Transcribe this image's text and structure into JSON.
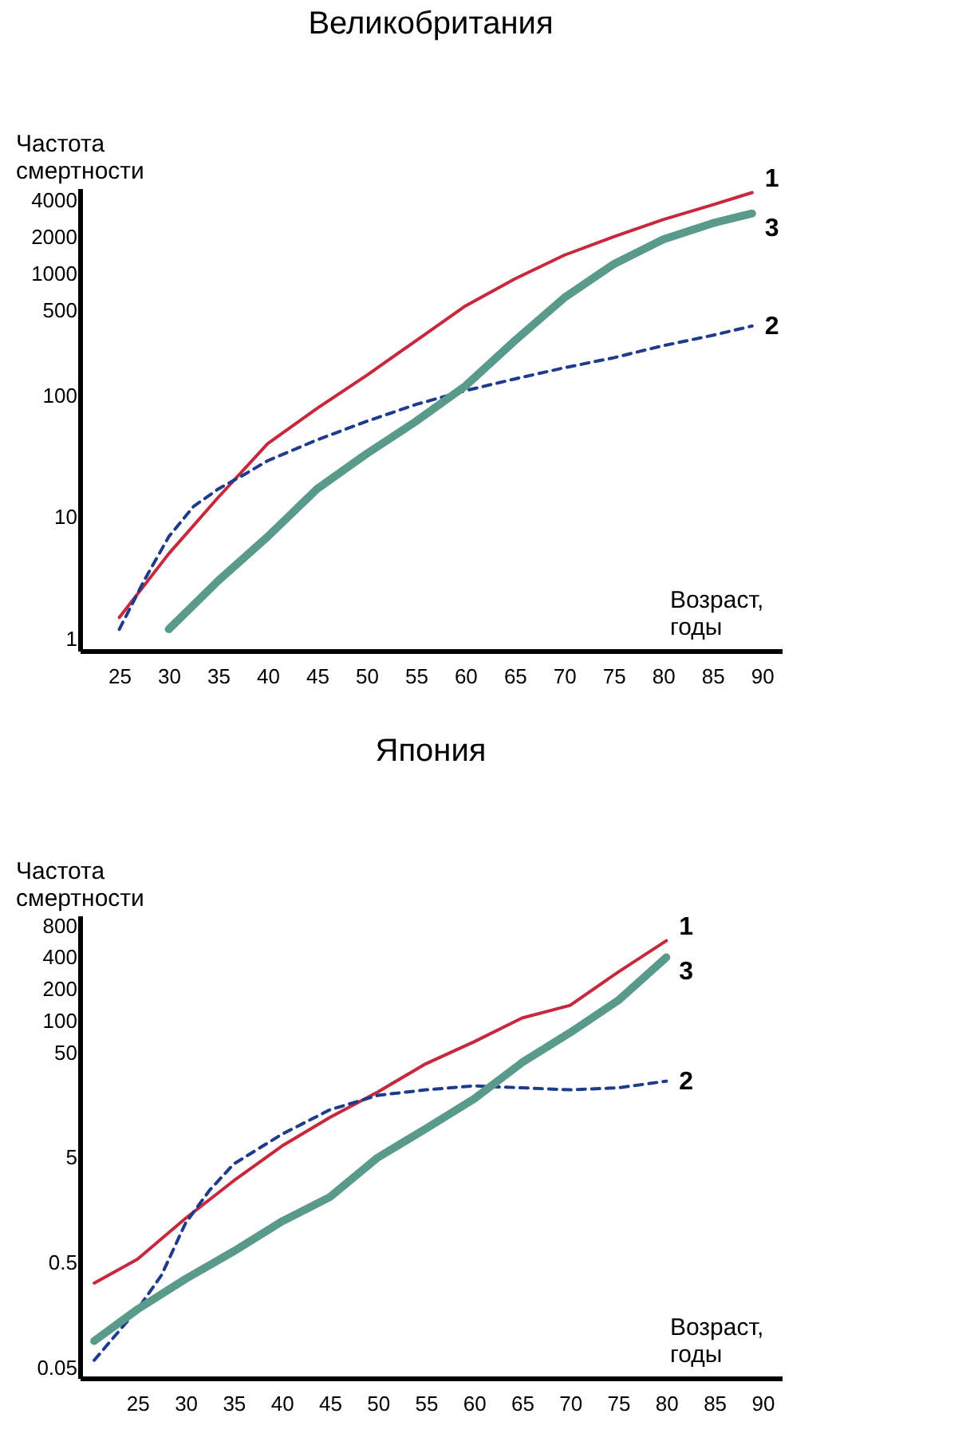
{
  "chart_data": [
    {
      "type": "line",
      "title": "Великобритания",
      "xlabel": "Возраст, годы",
      "ylabel": "Частота смертности",
      "log": "y",
      "xlim": [
        21,
        92
      ],
      "xticks": [
        25,
        30,
        35,
        40,
        45,
        50,
        55,
        60,
        65,
        70,
        75,
        80,
        85,
        90
      ],
      "ylim": [
        0.8,
        5000
      ],
      "yticks": [
        1,
        10,
        100,
        500,
        1000,
        2000,
        4000
      ],
      "series": [
        {
          "name": "1",
          "color": "#c8283c",
          "line_style": "solid",
          "x": [
            25,
            30,
            35,
            40,
            45,
            50,
            55,
            60,
            65,
            70,
            75,
            80,
            85,
            89
          ],
          "values": [
            1.5,
            5,
            14.5,
            40,
            78,
            145,
            280,
            540,
            900,
            1410,
            2000,
            2760,
            3650,
            4600
          ]
        },
        {
          "name": "2",
          "color": "#1f3c8c",
          "line_style": "dashed",
          "x": [
            25,
            27.5,
            30,
            32.5,
            35,
            37.5,
            40,
            45,
            50,
            55,
            60,
            65,
            70,
            75,
            80,
            85,
            89
          ],
          "values": [
            1.2,
            3,
            6.9,
            12.2,
            17,
            22,
            29,
            43,
            61,
            84,
            109,
            136,
            168,
            203,
            255,
            310,
            370
          ]
        },
        {
          "name": "3",
          "color": "#5a9a8c",
          "line_style": "solid",
          "x": [
            30,
            35,
            40,
            45,
            50,
            55,
            60,
            65,
            70,
            75,
            80,
            85,
            89
          ],
          "values": [
            1.2,
            3,
            6.9,
            17,
            33,
            61,
            119,
            280,
            630,
            1190,
            1900,
            2580,
            3100
          ]
        }
      ]
    },
    {
      "type": "line",
      "title": "Япония",
      "xlabel": "Возраст, годы",
      "ylabel": "Частота смертности",
      "log": "y",
      "xlim": [
        19,
        92
      ],
      "xticks": [
        25,
        30,
        35,
        40,
        45,
        50,
        55,
        60,
        65,
        70,
        75,
        80,
        85,
        90
      ],
      "ylim": [
        0.04,
        1000
      ],
      "yticks": [
        0.05,
        0.5,
        5,
        50,
        100,
        200,
        400,
        800
      ],
      "series": [
        {
          "name": "1",
          "color": "#c8283c",
          "line_style": "solid",
          "x": [
            20.5,
            25,
            30,
            35,
            40,
            45,
            50,
            55,
            60,
            65,
            70,
            75,
            80
          ],
          "values": [
            0.32,
            0.54,
            1.32,
            3,
            6.4,
            12,
            21,
            39,
            63,
            106,
            140,
            290,
            575
          ]
        },
        {
          "name": "2",
          "color": "#1f3c8c",
          "line_style": "dashed",
          "x": [
            20.5,
            25,
            27.5,
            30,
            32.5,
            35,
            40,
            45,
            50,
            55,
            60,
            65,
            70,
            75,
            80
          ],
          "values": [
            0.059,
            0.18,
            0.38,
            1.19,
            2.44,
            4.33,
            8.3,
            14.2,
            19.5,
            22,
            24,
            23,
            22,
            23,
            26.6
          ]
        },
        {
          "name": "3",
          "color": "#5a9a8c",
          "line_style": "solid",
          "x": [
            20.5,
            25,
            30,
            35,
            40,
            45,
            50,
            55,
            60,
            65,
            70,
            75,
            80
          ],
          "values": [
            0.09,
            0.18,
            0.35,
            0.64,
            1.23,
            2.1,
            5,
            9.4,
            18,
            40,
            77,
            156,
            400
          ]
        }
      ]
    }
  ]
}
